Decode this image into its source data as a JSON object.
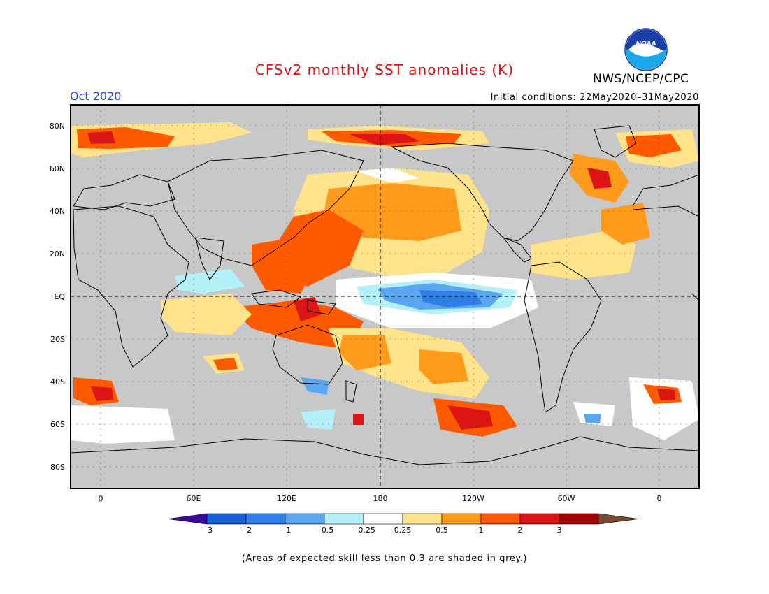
{
  "header": {
    "title": "CFSv2 monthly SST anomalies (K)",
    "agency": "NWS/NCEP/CPC",
    "logo_text": "NOAA",
    "valid_month": "Oct 2020",
    "initial_conditions": "Initial conditions: 22May2020–31May2020"
  },
  "map": {
    "lat_labels": [
      "80N",
      "60N",
      "40N",
      "20N",
      "EQ",
      "20S",
      "40S",
      "60S",
      "80S"
    ],
    "lon_labels": [
      "0",
      "60E",
      "120E",
      "180",
      "120W",
      "60W",
      "0"
    ],
    "missing_color": "#c8c8c8"
  },
  "colorbar": {
    "labels": [
      "−3",
      "−2",
      "−1",
      "−0.5",
      "−0.25",
      "0.25",
      "0.5",
      "1",
      "2",
      "3"
    ],
    "colors": [
      "#3a0a9a",
      "#1a5fcf",
      "#2f7fe6",
      "#5aa6f0",
      "#b4f0f8",
      "#ffffff",
      "#ffe38a",
      "#ff9a1a",
      "#ff5a00",
      "#dc1414",
      "#a00000",
      "#7a4a34"
    ]
  },
  "footnote": "(Areas of expected skill less than 0.3 are shaded in grey.)"
}
